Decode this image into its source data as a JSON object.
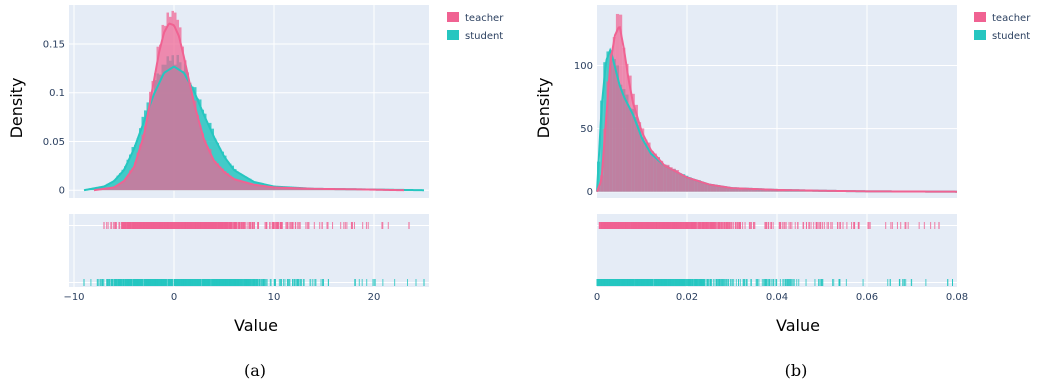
{
  "colors": {
    "teacher": "#f06292",
    "student": "#26c6c0",
    "plot_bg": "#e5ecf6",
    "grid": "#ffffff",
    "ticktext": "#2a3f5f"
  },
  "chart_data": [
    {
      "type": "histogram",
      "caption": "(a)",
      "xlabel": "Value",
      "ylabel": "Density",
      "xlim": [
        -10.5,
        25.5
      ],
      "ylim": [
        -0.008,
        0.19
      ],
      "xticks": [
        {
          "v": -10,
          "label": "−10"
        },
        {
          "v": 0,
          "label": "0"
        },
        {
          "v": 10,
          "label": "10"
        },
        {
          "v": 20,
          "label": "20"
        }
      ],
      "yticks": [
        {
          "v": 0,
          "label": "0"
        },
        {
          "v": 0.05,
          "label": "0.05"
        },
        {
          "v": 0.1,
          "label": "0.1"
        },
        {
          "v": 0.15,
          "label": "0.15"
        }
      ],
      "legend": "top-right",
      "series": [
        {
          "name": "teacher",
          "color_key": "teacher",
          "bin_width": 0.25,
          "x": [
            -8,
            -6,
            -5,
            -4,
            -3,
            -2,
            -1.5,
            -1,
            -0.5,
            0,
            0.5,
            1,
            1.5,
            2,
            3,
            4,
            5,
            6,
            8,
            10,
            14,
            18,
            23
          ],
          "y": [
            0,
            0.003,
            0.01,
            0.025,
            0.06,
            0.12,
            0.15,
            0.172,
            0.182,
            0.18,
            0.168,
            0.145,
            0.12,
            0.095,
            0.055,
            0.032,
            0.02,
            0.012,
            0.006,
            0.003,
            0.0015,
            0.001,
            0
          ],
          "rug_min": -7,
          "rug_max": 23.5
        },
        {
          "name": "student",
          "color_key": "student",
          "bin_width": 0.25,
          "x": [
            -9,
            -7,
            -6,
            -5,
            -4,
            -3,
            -2,
            -1,
            0,
            1,
            2,
            3,
            4,
            5,
            6,
            8,
            10,
            14,
            18,
            25
          ],
          "y": [
            0,
            0.004,
            0.01,
            0.022,
            0.045,
            0.075,
            0.105,
            0.128,
            0.135,
            0.128,
            0.108,
            0.082,
            0.058,
            0.037,
            0.022,
            0.009,
            0.004,
            0.0015,
            0.001,
            0
          ],
          "rug_min": -9,
          "rug_max": 25
        }
      ]
    },
    {
      "type": "histogram",
      "caption": "(b)",
      "xlabel": "Value",
      "ylabel": "Density",
      "xlim": [
        0,
        0.08
      ],
      "ylim": [
        -5,
        148
      ],
      "xticks": [
        {
          "v": 0,
          "label": "0"
        },
        {
          "v": 0.02,
          "label": "0.02"
        },
        {
          "v": 0.04,
          "label": "0.04"
        },
        {
          "v": 0.06,
          "label": "0.06"
        },
        {
          "v": 0.08,
          "label": "0.08"
        }
      ],
      "yticks": [
        {
          "v": 0,
          "label": "0"
        },
        {
          "v": 50,
          "label": "50"
        },
        {
          "v": 100,
          "label": "100"
        }
      ],
      "legend": "top-right",
      "series": [
        {
          "name": "teacher",
          "color_key": "teacher",
          "bin_width": 0.0007,
          "x": [
            0,
            0.001,
            0.002,
            0.003,
            0.004,
            0.005,
            0.006,
            0.007,
            0.008,
            0.01,
            0.012,
            0.015,
            0.02,
            0.025,
            0.03,
            0.04,
            0.05,
            0.06,
            0.08
          ],
          "y": [
            0,
            10,
            60,
            110,
            132,
            140,
            120,
            95,
            75,
            50,
            35,
            22,
            12,
            6,
            3,
            1.5,
            0.8,
            0.3,
            0
          ],
          "rug_min": 0.0005,
          "rug_max": 0.076
        },
        {
          "name": "student",
          "color_key": "student",
          "bin_width": 0.0007,
          "x": [
            0,
            0.001,
            0.002,
            0.003,
            0.004,
            0.005,
            0.006,
            0.008,
            0.01,
            0.012,
            0.015,
            0.02,
            0.025,
            0.03,
            0.04,
            0.05,
            0.06,
            0.08
          ],
          "y": [
            0,
            70,
            110,
            120,
            105,
            90,
            80,
            65,
            45,
            32,
            22,
            12,
            6,
            3,
            1.5,
            0.8,
            0.3,
            0
          ],
          "rug_min": 0.0,
          "rug_max": 0.079
        }
      ]
    }
  ]
}
